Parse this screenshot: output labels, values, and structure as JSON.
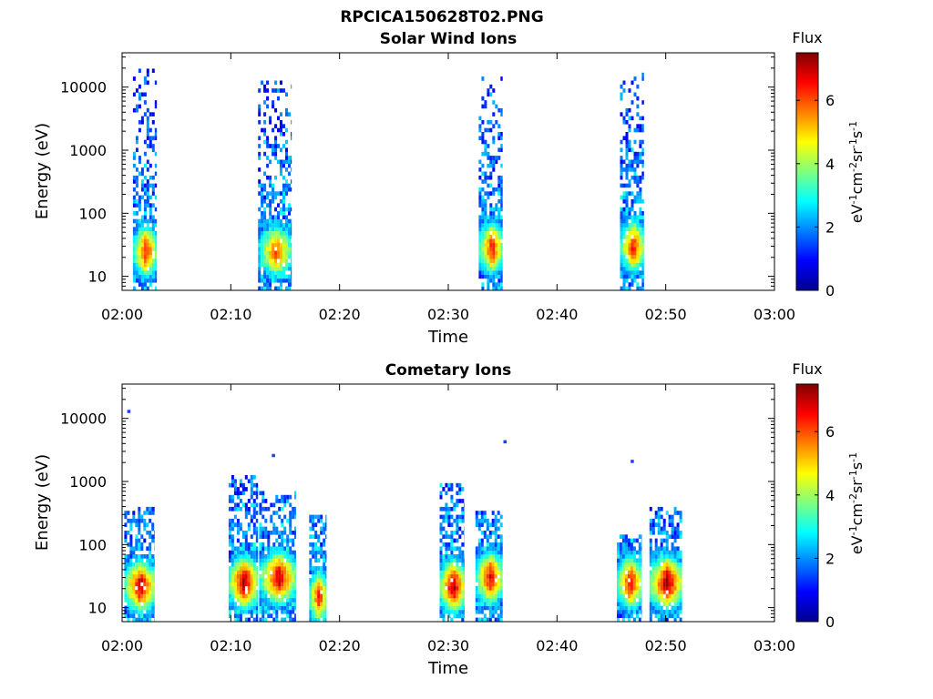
{
  "chart_data": [
    {
      "type": "heatmap",
      "title": "RPCICA150628T02.PNG",
      "subtitle": "Solar Wind Ions",
      "xlabel": "Time",
      "ylabel": "Energy (eV)",
      "y_scale": "log",
      "xlim": [
        "02:00",
        "03:00"
      ],
      "ylim": [
        6,
        35000
      ],
      "x_ticks": [
        "02:00",
        "02:10",
        "02:20",
        "02:30",
        "02:40",
        "02:50",
        "03:00"
      ],
      "y_ticks": [
        "10",
        "100",
        "1000",
        "10000"
      ],
      "colorbar": {
        "label": "Flux",
        "units": "eV-1cm-2sr-1s-1",
        "range": [
          0,
          7.5
        ],
        "ticks": [
          "0",
          "2",
          "4",
          "6"
        ],
        "colormap": "jet"
      },
      "bursts": [
        {
          "t_start": 1.0,
          "t_end": 3.2,
          "e_low": 10,
          "e_high": 20000,
          "peak_flux": 6.5,
          "peak_energy": 25
        },
        {
          "t_start": 12.5,
          "t_end": 15.6,
          "e_low": 10,
          "e_high": 13000,
          "peak_flux": 6.0,
          "peak_energy": 25
        },
        {
          "t_start": 32.8,
          "t_end": 35.0,
          "e_low": 10,
          "e_high": 20000,
          "peak_flux": 6.5,
          "peak_energy": 28
        },
        {
          "t_start": 45.8,
          "t_end": 48.0,
          "e_low": 10,
          "e_high": 17000,
          "peak_flux": 6.5,
          "peak_energy": 30
        }
      ]
    },
    {
      "type": "heatmap",
      "title": "Cometary Ions",
      "xlabel": "Time",
      "ylabel": "Energy (eV)",
      "y_scale": "log",
      "xlim": [
        "02:00",
        "03:00"
      ],
      "ylim": [
        6,
        35000
      ],
      "x_ticks": [
        "02:00",
        "02:10",
        "02:20",
        "02:30",
        "02:40",
        "02:50",
        "03:00"
      ],
      "y_ticks": [
        "10",
        "100",
        "1000",
        "10000"
      ],
      "colorbar": {
        "label": "Flux",
        "units": "eV-1cm-2sr-1s-1",
        "range": [
          0,
          7.5
        ],
        "ticks": [
          "0",
          "2",
          "4",
          "6"
        ],
        "colormap": "jet"
      },
      "bursts": [
        {
          "t_start": 0.2,
          "t_end": 3.0,
          "e_low": 10,
          "e_high": 400,
          "peak_flux": 7.2,
          "peak_energy": 22
        },
        {
          "t_start": 9.8,
          "t_end": 12.5,
          "e_low": 10,
          "e_high": 1200,
          "peak_flux": 7.4,
          "peak_energy": 25
        },
        {
          "t_start": 12.6,
          "t_end": 16.0,
          "e_low": 10,
          "e_high": 700,
          "peak_flux": 7.0,
          "peak_energy": 30
        },
        {
          "t_start": 17.2,
          "t_end": 18.8,
          "e_low": 10,
          "e_high": 300,
          "peak_flux": 6.5,
          "peak_energy": 15
        },
        {
          "t_start": 29.2,
          "t_end": 31.5,
          "e_low": 10,
          "e_high": 1000,
          "peak_flux": 7.4,
          "peak_energy": 22
        },
        {
          "t_start": 32.5,
          "t_end": 35.0,
          "e_low": 10,
          "e_high": 350,
          "peak_flux": 6.8,
          "peak_energy": 30
        },
        {
          "t_start": 45.5,
          "t_end": 47.8,
          "e_low": 10,
          "e_high": 150,
          "peak_flux": 6.8,
          "peak_energy": 25
        },
        {
          "t_start": 48.5,
          "t_end": 51.5,
          "e_low": 10,
          "e_high": 400,
          "peak_flux": 7.4,
          "peak_energy": 25
        }
      ],
      "isolated_points": [
        {
          "t": 0.6,
          "energy": 13000
        },
        {
          "t": 13.9,
          "energy": 2600
        },
        {
          "t": 35.2,
          "energy": 4300
        },
        {
          "t": 46.9,
          "energy": 2100
        }
      ]
    }
  ]
}
